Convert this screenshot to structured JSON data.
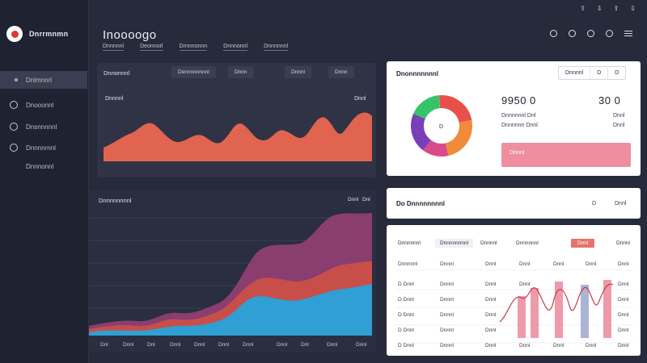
{
  "app": {
    "logo_text": "Dnrrmnmn",
    "title": "Inoooogo"
  },
  "top_icons": [
    "⇪",
    "⇩",
    "⇪",
    "⇩"
  ],
  "nav_tabs": [
    "Dnnnnnl",
    "Deonnorl",
    "Drnnnonnn",
    "Dnnnonnl",
    "Dnnnnnnl"
  ],
  "sidebar": {
    "items": [
      {
        "label": "Dnlmnnrl",
        "icon": "square-icon",
        "active": true
      },
      {
        "label": "Dnooonnl",
        "icon": "clock-icon",
        "active": false
      },
      {
        "label": "Dnsnnnnnl",
        "icon": "settings-icon",
        "active": false
      },
      {
        "label": "Dnnnnrnnl",
        "icon": "circle-icon",
        "active": false
      },
      {
        "label": "Dnnnonnl",
        "icon": "none",
        "active": false
      }
    ]
  },
  "card1": {
    "title": "Dnnonnnl",
    "pills": [
      "Dennnnnnnnl",
      "Dnnn",
      "Dnnnl",
      "Dnnn"
    ],
    "chart_label": "Dnnnnl",
    "right_label": "Dnnl"
  },
  "card2": {
    "title": "Dnnnnnnnnl",
    "right_labels": [
      "Dnnl",
      "Dnl"
    ],
    "x_labels": [
      "Dnl",
      "Dnnl",
      "Dnl",
      "Dnnl",
      "Dnnl",
      "Dnnl",
      "Dnnl",
      "Dnnl",
      "Dnl",
      "Dnnl",
      "Dnnl"
    ]
  },
  "card3": {
    "title": "Dnonnnnnnnl",
    "seg": [
      "Dnnnnl",
      "D",
      "D"
    ],
    "big_left": "9950 0",
    "big_right": "30 0",
    "lines_left": [
      "Dnnnnnnl Dnl",
      "Dnnnnnn Dnnl"
    ],
    "lines_right": [
      "Dnnl",
      "Dnnl"
    ],
    "pink_label": "Dnnnl",
    "donut_center": "D"
  },
  "card4": {
    "title": "Do Dnnnnnnnnl",
    "right": [
      "D",
      "Dnnl"
    ]
  },
  "card5": {
    "headers": [
      "Dnnnnnnl",
      "Dnnnnnnnnl",
      "Dnnnnl",
      "Dnnnnnnl",
      "Dnnl",
      "Dnnnl"
    ],
    "rows": [
      [
        "Dnnnnnl",
        "Dnnnl",
        "Dnnl",
        "Dnnl",
        "Dnnl",
        "Dnnl",
        "Dnnl"
      ],
      [
        "D Dnnl",
        "Dnnnl",
        "Dnnl",
        "Dnnl",
        "",
        "",
        "Dnnl"
      ],
      [
        "D Dnnl",
        "Dnnnl",
        "Dnnl",
        "",
        "",
        "",
        "Dnnl"
      ],
      [
        "D Dnnl",
        "Dnnnl",
        "Dnnl",
        "",
        "",
        "",
        "Dnnl"
      ],
      [
        "D Dnnl",
        "Dnnnl",
        "Dnnl",
        "",
        "",
        "",
        "Dnnl"
      ],
      [
        "D Dnnl",
        "Dnnnl",
        "Dnnl",
        "Dnnl",
        "Dnnl",
        "Dnnl",
        "Dnnl"
      ]
    ]
  },
  "colors": {
    "accent": "#e0644f",
    "pink": "#ee8e9e",
    "blue": "#2f9fd4",
    "purple": "#8a3e70"
  }
}
